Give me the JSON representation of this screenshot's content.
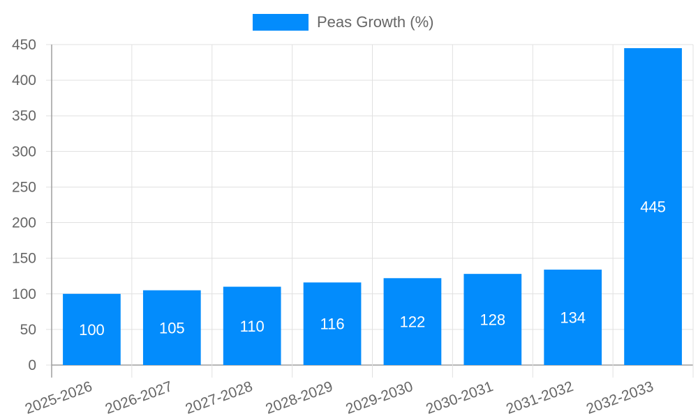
{
  "chart_data": {
    "type": "bar",
    "title": "",
    "xlabel": "",
    "ylabel": "",
    "categories": [
      "2025-2026",
      "2026-2027",
      "2027-2028",
      "2028-2029",
      "2029-2030",
      "2030-2031",
      "2031-2032",
      "2032-2033"
    ],
    "series": [
      {
        "name": "Peas Growth (%)",
        "values": [
          100,
          105,
          110,
          116,
          122,
          128,
          134,
          445
        ],
        "color": "#038cfc"
      }
    ],
    "ylim": [
      0,
      450
    ],
    "yticks": [
      0,
      50,
      100,
      150,
      200,
      250,
      300,
      350,
      400,
      450
    ],
    "grid": true,
    "legend_position": "top",
    "data_labels": true
  },
  "legend": {
    "label": "Peas Growth (%)"
  },
  "colors": {
    "bar": "#038cfc",
    "grid": "#e0e0e0",
    "axis": "#9e9e9e",
    "text": "#666666",
    "label": "#ffffff"
  }
}
